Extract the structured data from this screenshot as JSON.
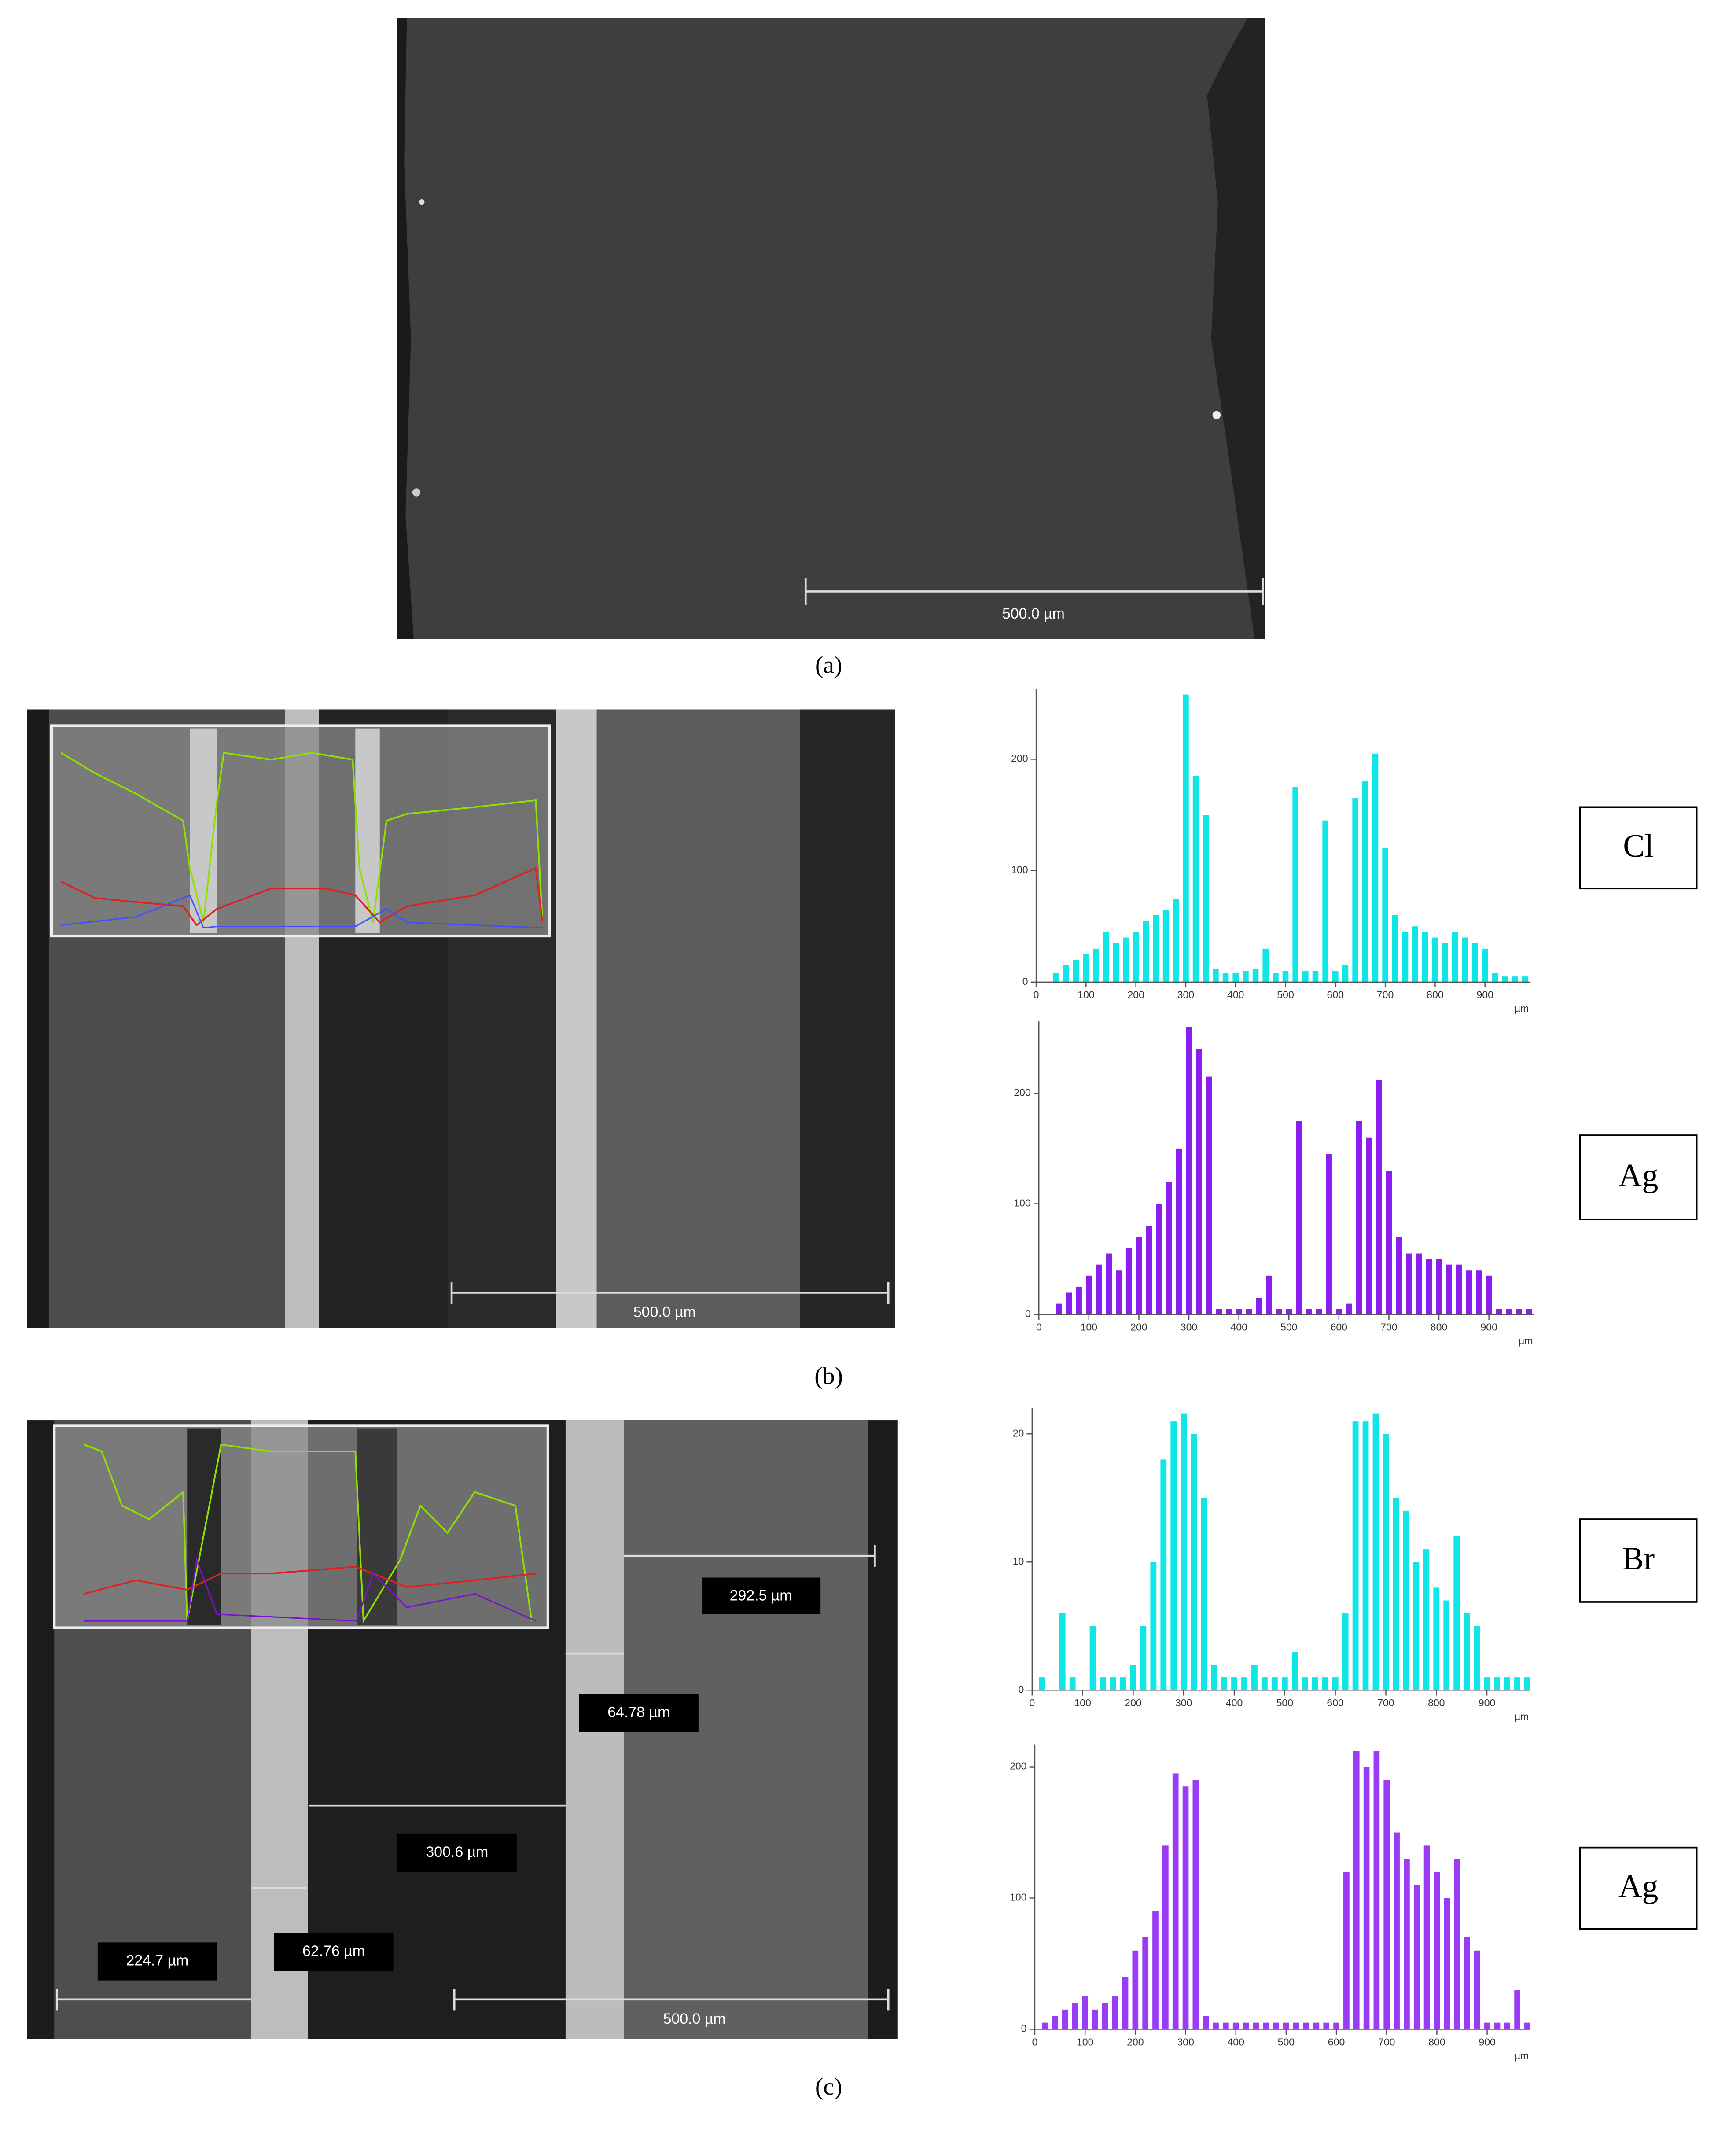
{
  "chart_data": [
    {
      "type": "spike",
      "title": "Cl",
      "xlabel": "µm",
      "color": "#11e6e6",
      "x": [
        0,
        20,
        40,
        60,
        80,
        100,
        120,
        140,
        160,
        180,
        200,
        220,
        240,
        260,
        280,
        300,
        320,
        340,
        360,
        380,
        400,
        420,
        440,
        460,
        480,
        500,
        520,
        540,
        560,
        580,
        600,
        620,
        640,
        660,
        680,
        700,
        720,
        740,
        760,
        780,
        800,
        820,
        840,
        860,
        880,
        900,
        920,
        940,
        960,
        980
      ],
      "values": [
        0,
        0,
        8,
        15,
        20,
        25,
        30,
        45,
        35,
        40,
        45,
        55,
        60,
        65,
        75,
        258,
        185,
        150,
        12,
        8,
        8,
        10,
        12,
        30,
        8,
        10,
        175,
        10,
        10,
        145,
        10,
        15,
        165,
        180,
        205,
        120,
        60,
        45,
        50,
        45,
        40,
        35,
        45,
        40,
        35,
        30,
        8,
        5,
        5,
        5
      ],
      "xlim": [
        0,
        990
      ],
      "ylim": [
        0,
        258
      ],
      "xticks": [
        0,
        100,
        200,
        300,
        400,
        500,
        600,
        700,
        800,
        900
      ],
      "yticks": [
        0,
        100,
        200
      ]
    },
    {
      "type": "spike",
      "title": "Ag",
      "xlabel": "µm",
      "color": "#8a1ef0",
      "x": [
        0,
        20,
        40,
        60,
        80,
        100,
        120,
        140,
        160,
        180,
        200,
        220,
        240,
        260,
        280,
        300,
        320,
        340,
        360,
        380,
        400,
        420,
        440,
        460,
        480,
        500,
        520,
        540,
        560,
        580,
        600,
        620,
        640,
        660,
        680,
        700,
        720,
        740,
        760,
        780,
        800,
        820,
        840,
        860,
        880,
        900,
        920,
        940,
        960,
        980
      ],
      "values": [
        0,
        0,
        10,
        20,
        25,
        35,
        45,
        55,
        40,
        60,
        70,
        80,
        100,
        120,
        150,
        260,
        240,
        215,
        5,
        5,
        5,
        5,
        15,
        35,
        5,
        5,
        175,
        5,
        5,
        145,
        5,
        10,
        175,
        160,
        212,
        130,
        70,
        55,
        55,
        50,
        50,
        45,
        45,
        40,
        40,
        35,
        5,
        5,
        5,
        5
      ],
      "xlim": [
        0,
        990
      ],
      "ylim": [
        0,
        260
      ],
      "xticks": [
        0,
        100,
        200,
        300,
        400,
        500,
        600,
        700,
        800,
        900
      ],
      "yticks": [
        0,
        100,
        200
      ]
    },
    {
      "type": "spike",
      "title": "Br",
      "xlabel": "µm",
      "color": "#11e6e6",
      "x": [
        0,
        20,
        40,
        60,
        80,
        100,
        120,
        140,
        160,
        180,
        200,
        220,
        240,
        260,
        280,
        300,
        320,
        340,
        360,
        380,
        400,
        420,
        440,
        460,
        480,
        500,
        520,
        540,
        560,
        580,
        600,
        620,
        640,
        660,
        680,
        700,
        720,
        740,
        760,
        780,
        800,
        820,
        840,
        860,
        880,
        900,
        920,
        940,
        960,
        980
      ],
      "values": [
        0,
        1,
        0,
        6,
        1,
        0,
        5,
        1,
        1,
        1,
        2,
        5,
        10,
        18,
        21,
        21.6,
        20,
        15,
        2,
        1,
        1,
        1,
        2,
        1,
        1,
        1,
        3,
        1,
        1,
        1,
        1,
        6,
        21,
        21,
        21.6,
        20,
        15,
        14,
        10,
        11,
        8,
        7,
        12,
        6,
        5,
        1,
        1,
        1,
        1,
        1
      ],
      "xlim": [
        0,
        985
      ],
      "ylim": [
        0,
        21.6
      ],
      "xticks": [
        0,
        100,
        200,
        300,
        400,
        500,
        600,
        700,
        800,
        900
      ],
      "yticks": [
        0,
        10,
        20
      ]
    },
    {
      "type": "spike",
      "title": "Ag",
      "xlabel": "µm",
      "color": "#9a3cf5",
      "x": [
        0,
        20,
        40,
        60,
        80,
        100,
        120,
        140,
        160,
        180,
        200,
        220,
        240,
        260,
        280,
        300,
        320,
        340,
        360,
        380,
        400,
        420,
        440,
        460,
        480,
        500,
        520,
        540,
        560,
        580,
        600,
        620,
        640,
        660,
        680,
        700,
        720,
        740,
        760,
        780,
        800,
        820,
        840,
        860,
        880,
        900,
        920,
        940,
        960,
        980
      ],
      "values": [
        0,
        5,
        10,
        15,
        20,
        25,
        15,
        20,
        25,
        40,
        60,
        70,
        90,
        140,
        195,
        185,
        190,
        10,
        5,
        5,
        5,
        5,
        5,
        5,
        5,
        5,
        5,
        5,
        5,
        5,
        5,
        120,
        212,
        200,
        212,
        190,
        150,
        130,
        110,
        140,
        120,
        100,
        130,
        70,
        60,
        5,
        5,
        5,
        30,
        5
      ],
      "xlim": [
        0,
        985
      ],
      "ylim": [
        0,
        213
      ],
      "xticks": [
        0,
        100,
        200,
        300,
        400,
        500,
        600,
        700,
        800,
        900
      ],
      "yticks": [
        0,
        100,
        200
      ]
    }
  ],
  "panels": {
    "a": {
      "caption": "(a)",
      "scale_bar": "500.0 µm"
    },
    "b": {
      "caption": "(b)",
      "scale_bar": "500.0 µm"
    },
    "c": {
      "caption": "(c)",
      "scale_bar": "500.0 µm",
      "measurements": [
        "292.5 µm",
        "64.78 µm",
        "300.6 µm",
        "224.7 µm",
        "62.76 µm"
      ]
    }
  }
}
